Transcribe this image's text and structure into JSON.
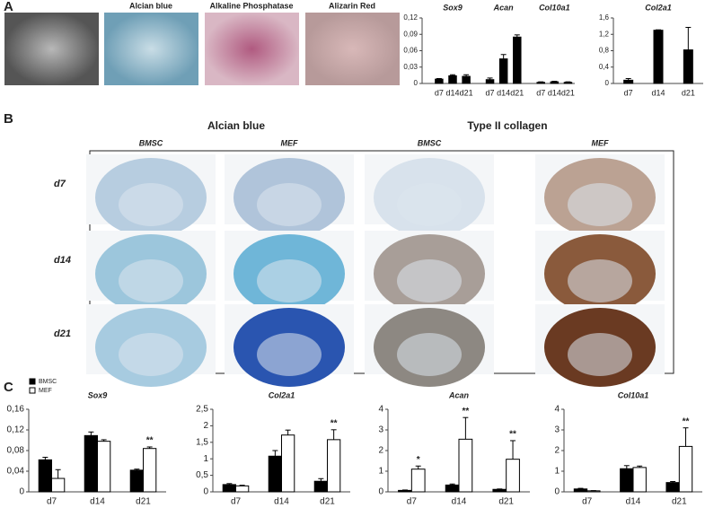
{
  "panels": {
    "A": {
      "label": "A",
      "images": [
        "Alcian blue",
        "Alkaline Phosphatase",
        "Alizarin Red"
      ]
    },
    "B": {
      "label": "B",
      "stains": [
        "Alcian blue",
        "Type II collagen"
      ],
      "columns": [
        "BMSC",
        "MEF",
        "BMSC",
        "MEF"
      ],
      "rows": [
        "d7",
        "d14",
        "d21"
      ]
    },
    "C": {
      "label": "C"
    }
  },
  "chart_data": [
    {
      "type": "bar",
      "categories": [
        "d7",
        "d14",
        "d21",
        "d7",
        "d14",
        "d21",
        "d7",
        "d14",
        "d21"
      ],
      "group_labels": [
        "Sox9",
        "Acan",
        "Col10a1"
      ],
      "values": [
        0.008,
        0.014,
        0.013,
        0.007,
        0.045,
        0.085,
        0.002,
        0.003,
        0.002
      ],
      "errors": [
        0.001,
        0.002,
        0.003,
        0.003,
        0.008,
        0.004,
        0.001,
        0.001,
        0.001
      ],
      "color": "#000000",
      "ylim": [
        0,
        0.12
      ],
      "yticks": [
        0,
        {
          "value": 0.03,
          "label": "0,03"
        },
        {
          "value": 0.06,
          "label": "0,06"
        },
        {
          "value": 0.09,
          "label": "0,09"
        },
        {
          "value": 0.12,
          "label": "0,12"
        }
      ]
    },
    {
      "type": "bar",
      "title": "Col2a1",
      "categories": [
        "d7",
        "d14",
        "d21"
      ],
      "values": [
        0.08,
        1.3,
        0.82
      ],
      "errors": [
        0.04,
        0.01,
        0.55
      ],
      "color": "#000000",
      "ylim": [
        0,
        1.6
      ],
      "yticks": [
        0,
        {
          "value": 0.4,
          "label": "0,4"
        },
        {
          "value": 0.8,
          "label": "0,8"
        },
        {
          "value": 1.2,
          "label": "1,2"
        },
        {
          "value": 1.6,
          "label": "1,6"
        }
      ]
    },
    {
      "type": "bar",
      "title": "Sox9",
      "categories": [
        "d7",
        "d14",
        "d21"
      ],
      "series": [
        {
          "name": "BMSC",
          "color": "#000000",
          "values": [
            0.062,
            0.109,
            0.042
          ],
          "errors": [
            0.005,
            0.007,
            0.002
          ],
          "significance": [
            null,
            null,
            null
          ]
        },
        {
          "name": "MEF",
          "color": "#ffffff",
          "values": [
            0.026,
            0.098,
            0.084
          ],
          "errors": [
            0.017,
            0.003,
            0.003
          ],
          "significance": [
            null,
            null,
            "**"
          ]
        }
      ],
      "ylim": [
        0,
        0.16
      ],
      "yticks": [
        0,
        {
          "value": 0.04,
          "label": "0,04"
        },
        {
          "value": 0.08,
          "label": "0,08"
        },
        {
          "value": 0.12,
          "label": "0,12"
        },
        {
          "value": 0.16,
          "label": "0,16"
        }
      ]
    },
    {
      "type": "bar",
      "title": "Col2a1",
      "categories": [
        "d7",
        "d14",
        "d21"
      ],
      "series": [
        {
          "name": "BMSC",
          "color": "#000000",
          "values": [
            0.22,
            1.08,
            0.32
          ],
          "errors": [
            0.03,
            0.17,
            0.08
          ],
          "significance": [
            null,
            null,
            null
          ]
        },
        {
          "name": "MEF",
          "color": "#ffffff",
          "values": [
            0.18,
            1.72,
            1.58
          ],
          "errors": [
            0.02,
            0.15,
            0.3
          ],
          "significance": [
            null,
            null,
            "**"
          ]
        }
      ],
      "ylim": [
        0,
        2.5
      ],
      "yticks": [
        0,
        {
          "value": 0.5,
          "label": "0,5"
        },
        1,
        {
          "value": 1.5,
          "label": "1,5"
        },
        2,
        {
          "value": 2.5,
          "label": "2,5"
        }
      ]
    },
    {
      "type": "bar",
      "title": "Acan",
      "categories": [
        "d7",
        "d14",
        "d21"
      ],
      "series": [
        {
          "name": "BMSC",
          "color": "#000000",
          "values": [
            0.07,
            0.33,
            0.12
          ],
          "errors": [
            0.02,
            0.05,
            0.02
          ],
          "significance": [
            null,
            null,
            null
          ]
        },
        {
          "name": "MEF",
          "color": "#ffffff",
          "values": [
            1.1,
            2.55,
            1.58
          ],
          "errors": [
            0.15,
            1.05,
            0.9
          ],
          "significance": [
            "*",
            "**",
            "**"
          ]
        }
      ],
      "ylim": [
        0,
        4
      ],
      "yticks": [
        0,
        1,
        2,
        3,
        4
      ]
    },
    {
      "type": "bar",
      "title": "Col10a1",
      "categories": [
        "d7",
        "d14",
        "d21"
      ],
      "series": [
        {
          "name": "BMSC",
          "color": "#000000",
          "values": [
            0.14,
            1.12,
            0.45
          ],
          "errors": [
            0.03,
            0.15,
            0.05
          ],
          "significance": [
            null,
            null,
            null
          ]
        },
        {
          "name": "MEF",
          "color": "#ffffff",
          "values": [
            0.05,
            1.18,
            2.2
          ],
          "errors": [
            0.01,
            0.07,
            0.9
          ],
          "significance": [
            null,
            null,
            "**"
          ]
        }
      ],
      "ylim": [
        0,
        4
      ],
      "yticks": [
        0,
        1,
        2,
        3,
        4
      ]
    }
  ]
}
